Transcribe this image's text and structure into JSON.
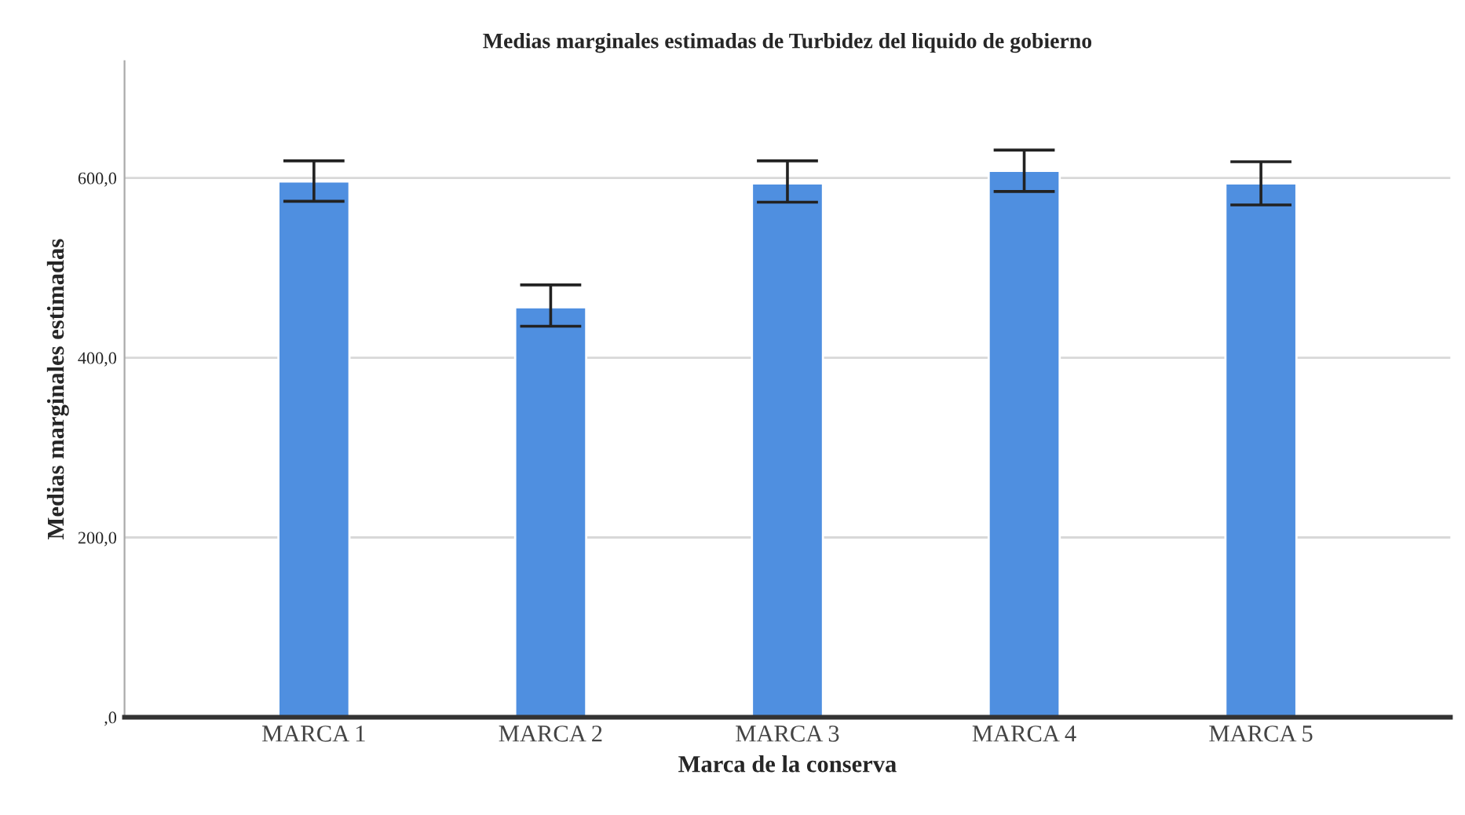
{
  "chart_data": {
    "type": "bar",
    "title": "Medias marginales estimadas de Turbidez del liquido de gobierno",
    "xlabel": "Marca de la conserva",
    "ylabel": "Medias marginales estimadas",
    "categories": [
      "MARCA 1",
      "MARCA 2",
      "MARCA 3",
      "MARCA 4",
      "MARCA 5"
    ],
    "values": [
      596,
      456,
      594,
      608,
      594
    ],
    "errors": [
      [
        574,
        619
      ],
      [
        435,
        481
      ],
      [
        573,
        619
      ],
      [
        585,
        631
      ],
      [
        570,
        618
      ]
    ],
    "color": "#4f8fe0",
    "ylim": [
      0,
      730
    ],
    "yticks": [
      {
        "value": 0,
        "label": ",0"
      },
      {
        "value": 200,
        "label": "200,0"
      },
      {
        "value": 400,
        "label": "400,0"
      },
      {
        "value": 600,
        "label": "600,0"
      }
    ],
    "grid": "y"
  }
}
